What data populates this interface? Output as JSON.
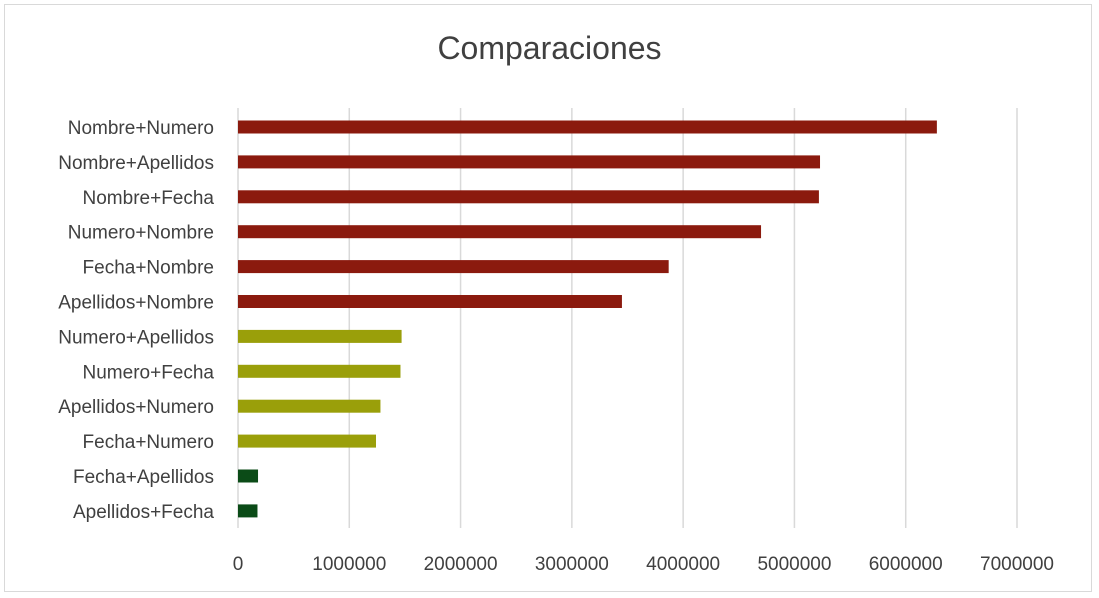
{
  "chart_data": {
    "type": "bar",
    "orientation": "horizontal",
    "title": "Comparaciones",
    "xlabel": "",
    "ylabel": "",
    "xlim": [
      0,
      7000000
    ],
    "x_ticks": [
      "0",
      "1000000",
      "2000000",
      "3000000",
      "4000000",
      "5000000",
      "6000000",
      "7000000"
    ],
    "grid": "vertical",
    "legend": "none",
    "categories": [
      "Nombre+Numero",
      "Nombre+Apellidos",
      "Nombre+Fecha",
      "Numero+Nombre",
      "Fecha+Nombre",
      "Apellidos+Nombre",
      "Numero+Apellidos",
      "Numero+Fecha",
      "Apellidos+Numero",
      "Fecha+Numero",
      "Fecha+Apellidos",
      "Apellidos+Fecha"
    ],
    "values": [
      6280000,
      5230000,
      5220000,
      4700000,
      3870000,
      3450000,
      1470000,
      1460000,
      1280000,
      1240000,
      180000,
      175000
    ],
    "bar_colors": [
      "#8b1a0e",
      "#8b1a0e",
      "#8b1a0e",
      "#8b1a0e",
      "#8b1a0e",
      "#8b1a0e",
      "#9a9f0a",
      "#9a9f0a",
      "#9a9f0a",
      "#9a9f0a",
      "#0b4b17",
      "#0b4b17"
    ]
  }
}
